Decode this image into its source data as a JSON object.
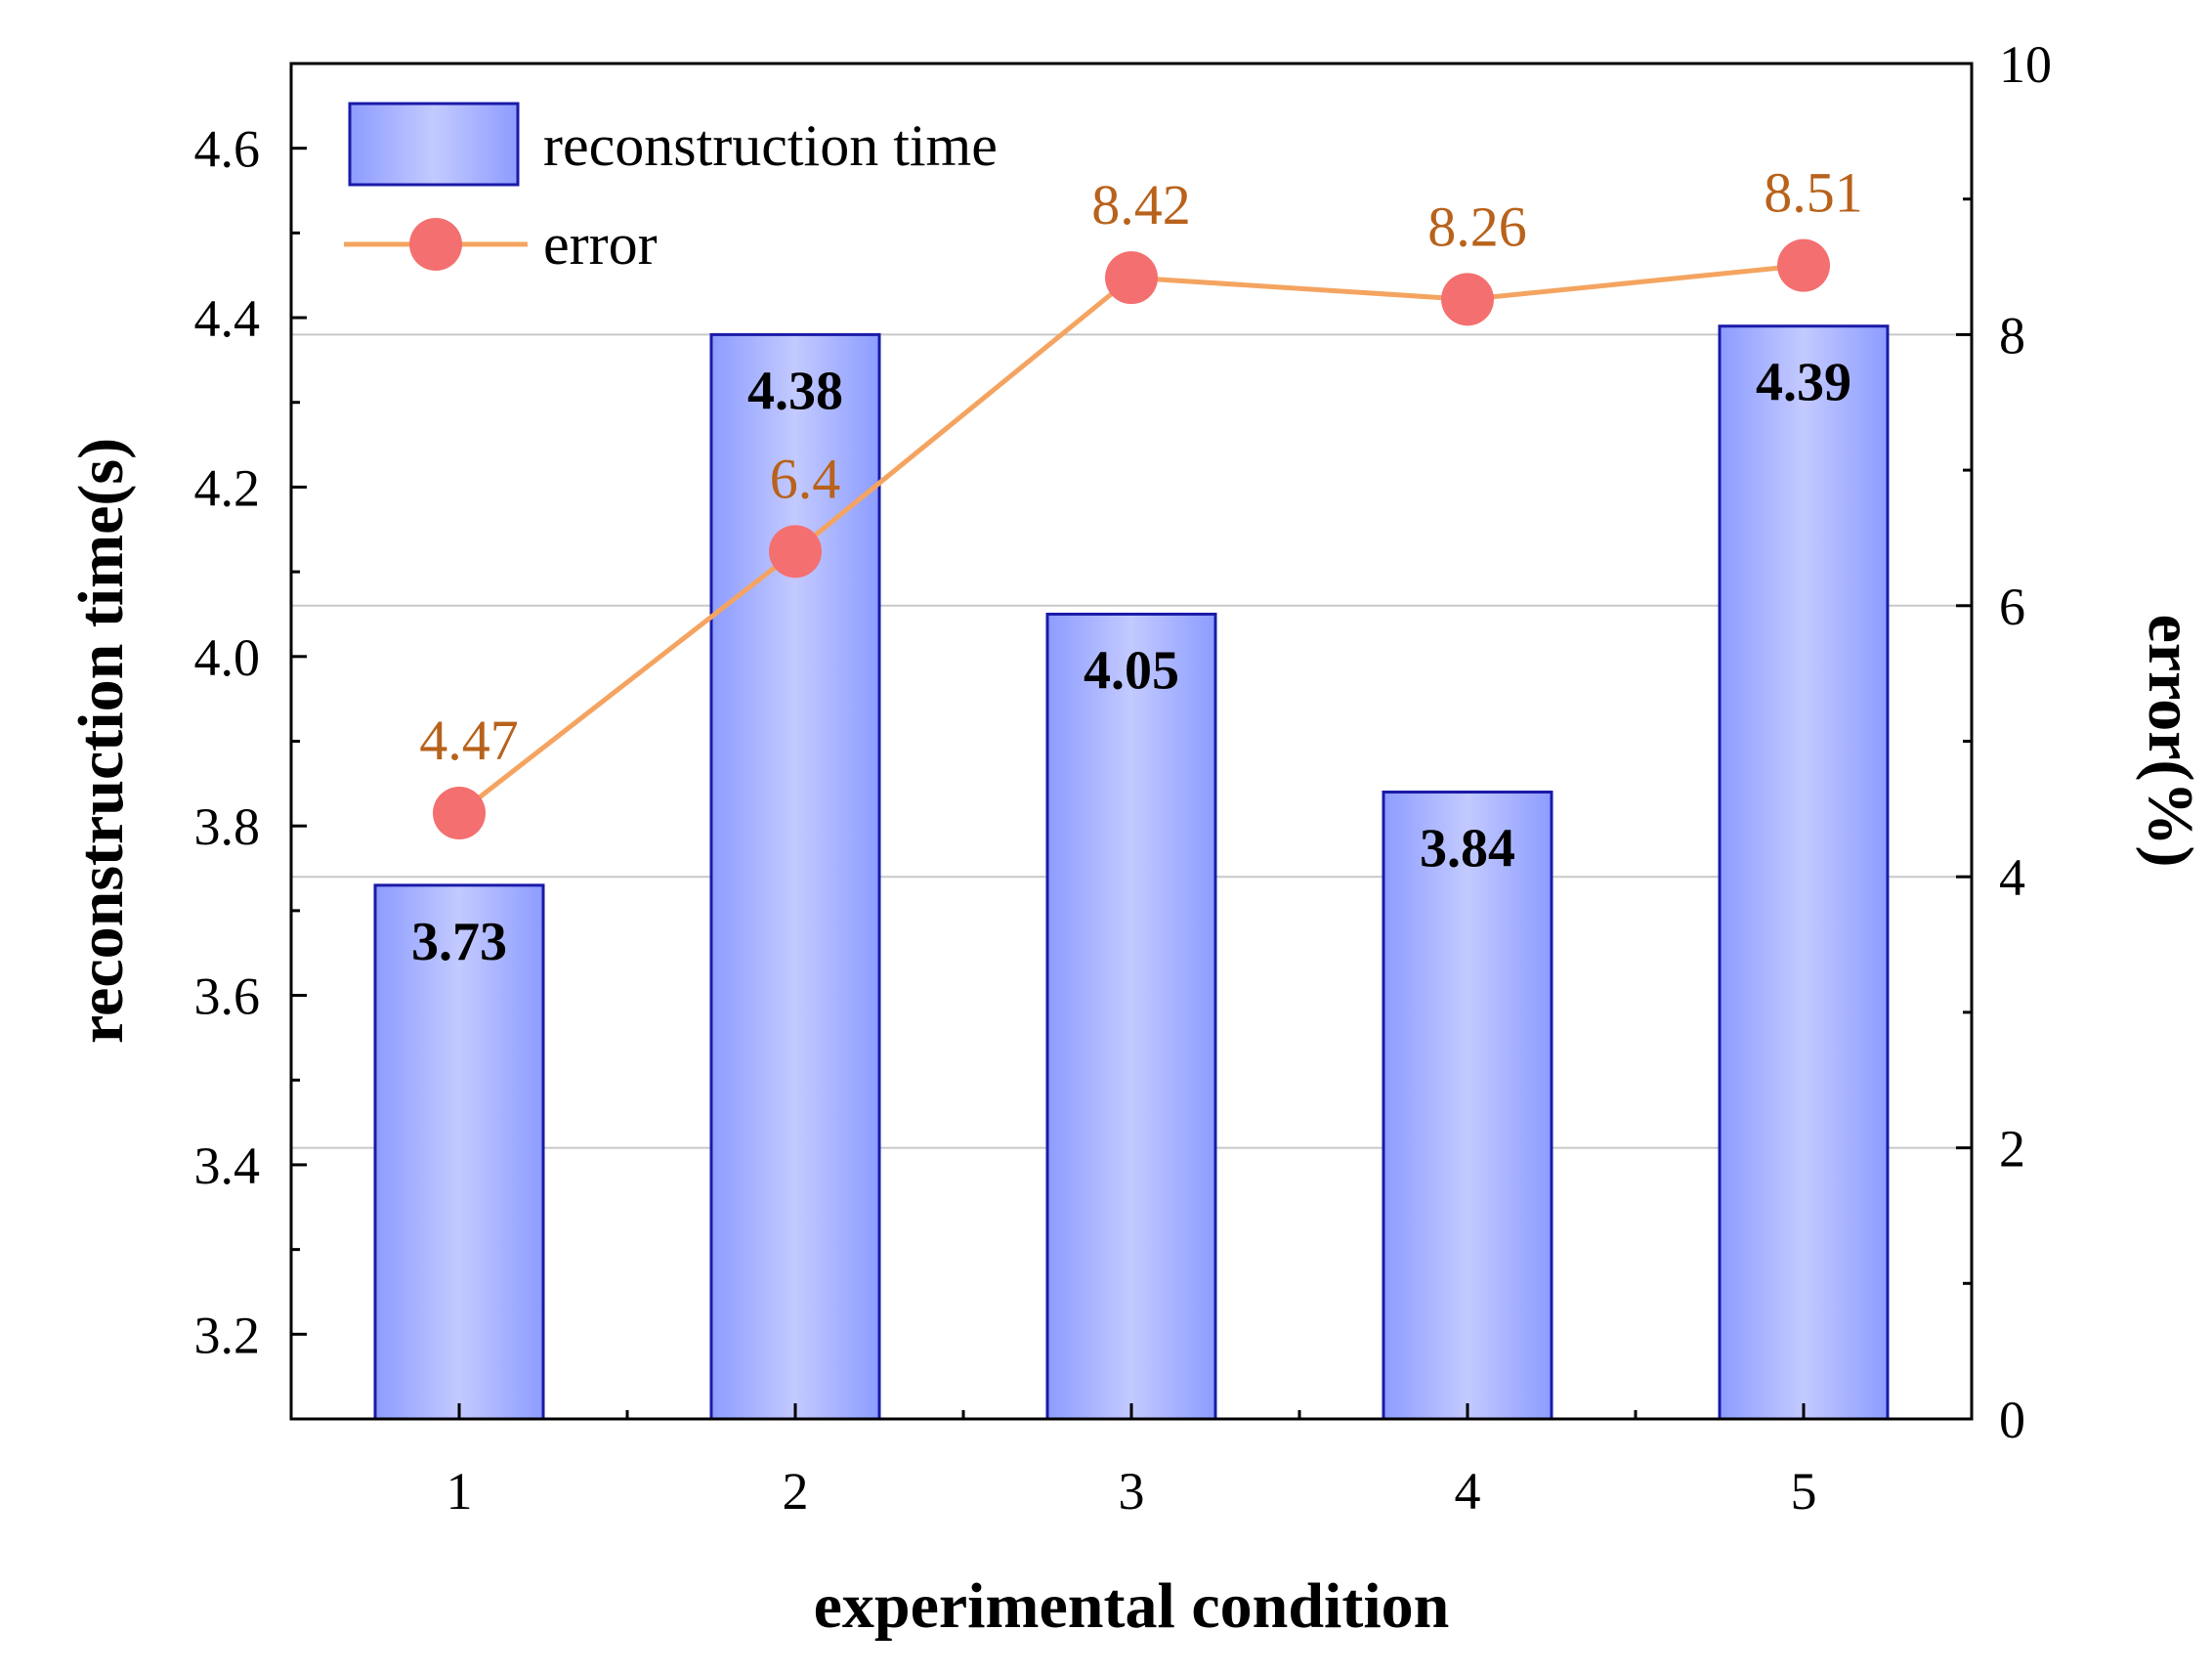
{
  "chart_data": {
    "type": "bar",
    "categories": [
      "1",
      "2",
      "3",
      "4",
      "5"
    ],
    "xlabel": "experimental condition",
    "ylabel": "reconstruction time(s)",
    "y2label": "error(%)",
    "ylim": [
      3.1,
      4.7
    ],
    "y2lim": [
      0,
      10
    ],
    "yticks": [
      "3.2",
      "3.4",
      "3.6",
      "3.8",
      "4.0",
      "4.2",
      "4.4",
      "4.6"
    ],
    "y2ticks": [
      "0",
      "2",
      "4",
      "6",
      "8",
      "10"
    ],
    "grid": "horizontal",
    "legend_position": "top-left",
    "series": [
      {
        "name": "reconstruction time",
        "type": "bar",
        "axis": "left",
        "values": [
          3.73,
          4.38,
          4.05,
          3.84,
          4.39
        ],
        "labels": [
          "3.73",
          "4.38",
          "4.05",
          "3.84",
          "4.39"
        ],
        "color": "#9ba8ff",
        "edge_color": "#1a1aa8"
      },
      {
        "name": "error",
        "type": "line",
        "axis": "right",
        "values": [
          4.47,
          6.4,
          8.42,
          8.26,
          8.51
        ],
        "labels": [
          "4.47",
          "6.4",
          "8.42",
          "8.26",
          "8.51"
        ],
        "line_color": "#f4a460",
        "marker_color": "#f46f6f",
        "label_color": "#b8621b"
      }
    ]
  }
}
